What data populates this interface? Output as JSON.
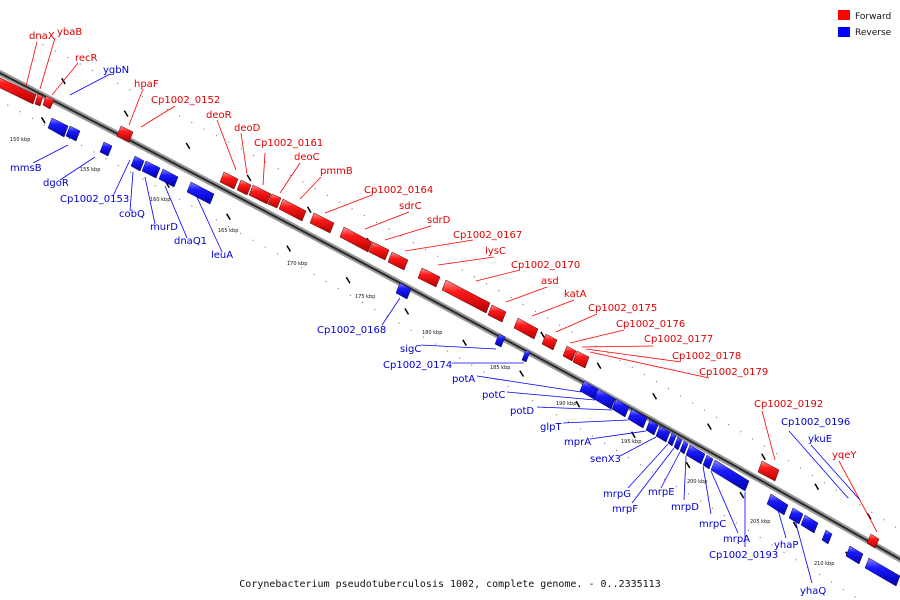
{
  "legend": {
    "forward": {
      "label": "Forward",
      "color": "#ff0000"
    },
    "reverse": {
      "label": "Reverse",
      "color": "#0000ff"
    }
  },
  "caption": "Corynebacterium pseudotuberculosis 1002, complete genome. - 0..2335113",
  "ticks": [
    "150 kbp",
    "155 kbp",
    "160 kbp",
    "165 kbp",
    "170 kbp",
    "175 kbp",
    "180 kbp",
    "185 kbp",
    "190 kbp",
    "195 kbp",
    "200 kbp",
    "205 kbp",
    "210 kbp"
  ],
  "forward_genes": [
    "dnaX",
    "ybaB",
    "recR",
    "hpaF",
    "Cp1002_0152",
    "deoR",
    "deoD",
    "Cp1002_0161",
    "deoC",
    "pmmB",
    "Cp1002_0164",
    "sdrC",
    "sdrD",
    "Cp1002_0167",
    "lysC",
    "Cp1002_0170",
    "asd",
    "katA",
    "Cp1002_0175",
    "Cp1002_0176",
    "Cp1002_0177",
    "Cp1002_0178",
    "Cp1002_0179",
    "Cp1002_0192",
    "yqeY"
  ],
  "reverse_genes": [
    "ygbN",
    "mmsB",
    "dgoR",
    "Cp1002_0153",
    "cobQ",
    "murD",
    "dnaQ1",
    "leuA",
    "Cp1002_0168",
    "sigC",
    "Cp1002_0174",
    "potA",
    "potC",
    "potD",
    "glpT",
    "mprA",
    "senX3",
    "mrpG",
    "mrpF",
    "mrpE",
    "mrpD",
    "mrpC",
    "mrpA",
    "Cp1002_0193",
    "yhaP",
    "yhaQ",
    "Cp1002_0196",
    "ykuE"
  ]
}
